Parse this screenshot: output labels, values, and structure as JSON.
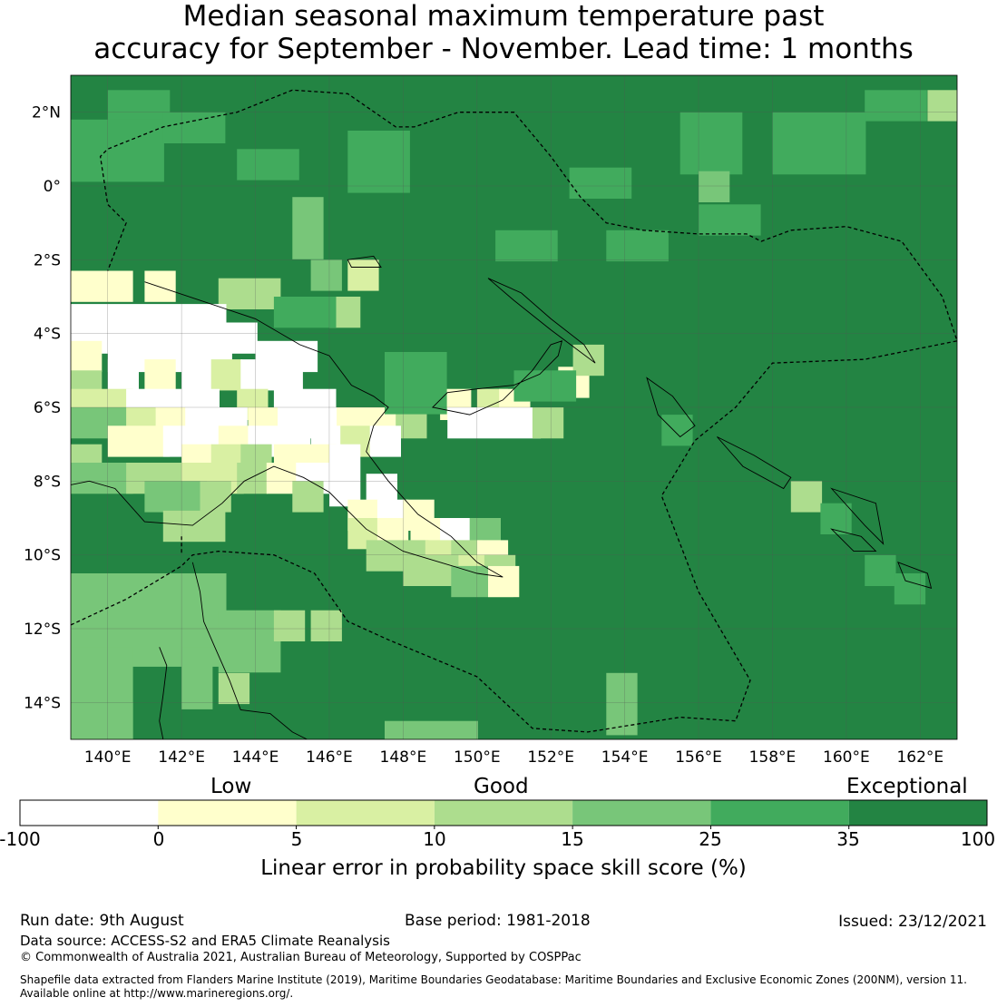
{
  "title": {
    "line1": "Median seasonal maximum temperature past",
    "line2": "accuracy for September - November. Lead time: 1 months"
  },
  "map": {
    "lon_range": [
      139,
      163
    ],
    "lat_range": [
      -15,
      3
    ],
    "lon_ticks": [
      "140°E",
      "142°E",
      "144°E",
      "146°E",
      "148°E",
      "150°E",
      "152°E",
      "154°E",
      "156°E",
      "158°E",
      "160°E",
      "162°E"
    ],
    "lat_ticks": [
      "2°N",
      "0°",
      "2°S",
      "4°S",
      "6°S",
      "8°S",
      "10°S",
      "12°S",
      "14°S"
    ],
    "grid_resolution_deg": 0.83,
    "grid_lines": true,
    "coastlines": true,
    "eez_boundaries_dashed": true,
    "dominant_category": "35 to 100 (Exceptional)"
  },
  "colorbar": {
    "categories": [
      "Low",
      "Good",
      "Exceptional"
    ],
    "boundaries": [
      "-100",
      "0",
      "5",
      "10",
      "15",
      "25",
      "35",
      "100"
    ],
    "colors": [
      "#ffffff",
      "#ffffcc",
      "#d9f0a3",
      "#addd8e",
      "#78c679",
      "#41ab5d",
      "#238443"
    ],
    "label": "Linear error in probability space skill score (%)"
  },
  "footer": {
    "run_date": "Run date: 9th August",
    "base_period": "Base period: 1981-2018",
    "issued": "Issued: 23/12/2021",
    "data_source": "Data source: ACCESS-S2 and ERA5 Climate Reanalysis",
    "copyright": "© Commonwealth of Australia 2021, Australian Bureau of Meteorology, Supported by COSPPac",
    "shapefile_line1": "Shapefile data extracted from Flanders Marine Institute (2019), Maritime Boundaries Geodatabase: Maritime Boundaries and Exclusive Economic Zones (200NM), version 11.",
    "shapefile_line2": "Available online at http://www.marineregions.org/."
  }
}
